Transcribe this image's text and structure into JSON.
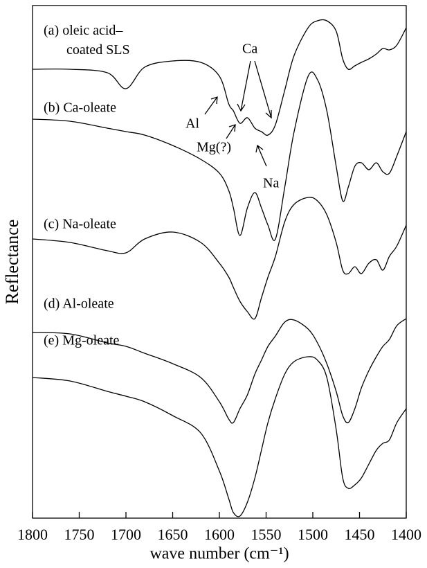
{
  "chart_data": {
    "type": "line",
    "x_label": "wave number (cm⁻¹)",
    "y_label": "Reflectance",
    "x": [
      1800,
      1760,
      1720,
      1700,
      1680,
      1650,
      1620,
      1600,
      1590,
      1585,
      1578,
      1570,
      1562,
      1555,
      1548,
      1540,
      1530,
      1520,
      1505,
      1495,
      1485,
      1475,
      1468,
      1462,
      1455,
      1448,
      1440,
      1432,
      1425,
      1418,
      1410,
      1400
    ],
    "xlim": [
      1800,
      1400
    ],
    "xticks": [
      1800,
      1750,
      1700,
      1650,
      1600,
      1550,
      1500,
      1450,
      1400
    ],
    "ylim": [
      0,
      740
    ],
    "series": [
      {
        "name": "(a) oleic acid–coated SLS",
        "color": "#000000",
        "values": [
          648,
          648,
          643,
          620,
          651,
          660,
          658,
          638,
          598,
          588,
          570,
          578,
          563,
          558,
          553,
          568,
          618,
          668,
          708,
          718,
          718,
          703,
          663,
          648,
          653,
          658,
          663,
          670,
          678,
          676,
          683,
          708
        ]
      },
      {
        "name": "(b) Ca-oleate",
        "color": "#000000",
        "values": [
          576,
          573,
          563,
          558,
          553,
          538,
          518,
          498,
          473,
          448,
          408,
          448,
          470,
          448,
          423,
          403,
          478,
          558,
          638,
          633,
          588,
          508,
          458,
          478,
          508,
          513,
          503,
          513,
          500,
          498,
          523,
          558
        ]
      },
      {
        "name": "(c) Na-oleate",
        "color": "#000000",
        "values": [
          403,
          398,
          386,
          383,
          403,
          413,
          398,
          368,
          348,
          333,
          313,
          298,
          288,
          318,
          348,
          378,
          428,
          453,
          463,
          458,
          438,
          398,
          358,
          353,
          363,
          353,
          368,
          373,
          358,
          378,
          393,
          423
        ]
      },
      {
        "name": "(d) Al-oleate",
        "color": "#000000",
        "values": [
          268,
          266,
          253,
          248,
          238,
          223,
          203,
          168,
          143,
          138,
          158,
          178,
          208,
          228,
          248,
          263,
          283,
          286,
          273,
          253,
          223,
          183,
          148,
          138,
          158,
          188,
          213,
          233,
          248,
          258,
          278,
          288
        ]
      },
      {
        "name": "(e) Mg-oleate",
        "color": "#000000",
        "values": [
          203,
          198,
          183,
          176,
          168,
          148,
          123,
          68,
          28,
          8,
          3,
          23,
          58,
          98,
          138,
          173,
          208,
          226,
          233,
          228,
          203,
          128,
          58,
          43,
          48,
          58,
          78,
          98,
          108,
          113,
          138,
          158
        ]
      }
    ],
    "annotations": [
      "Al",
      "Ca",
      "Mg(?)",
      "Na"
    ]
  }
}
